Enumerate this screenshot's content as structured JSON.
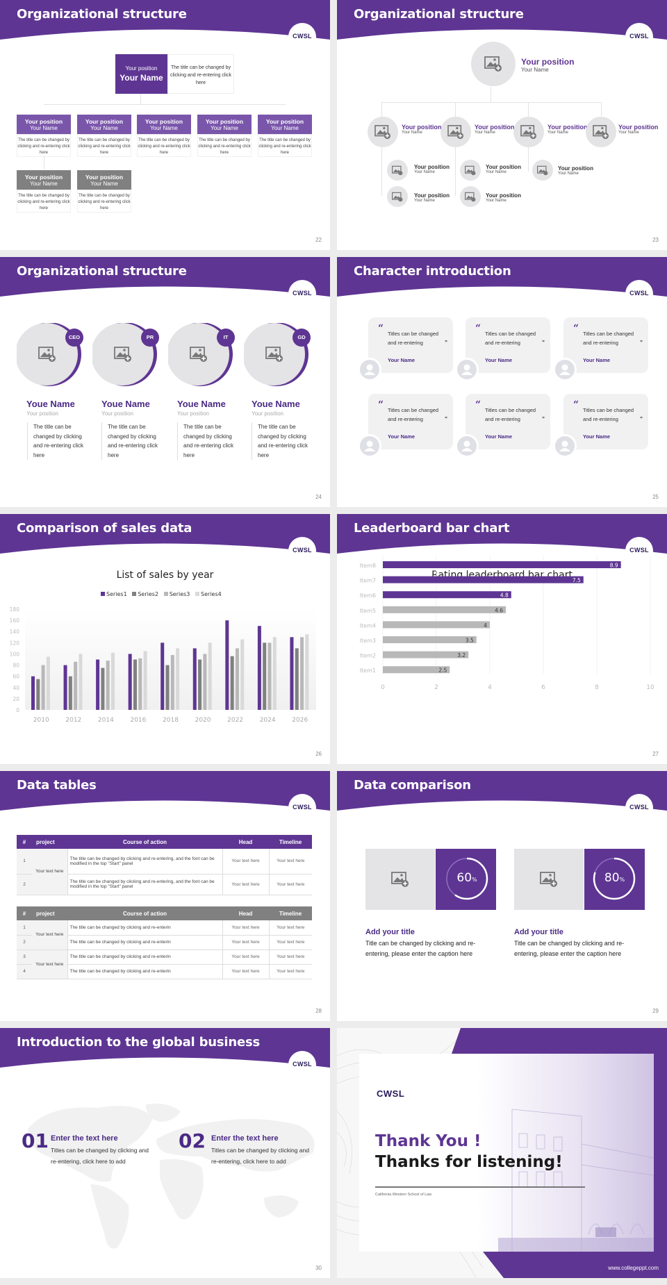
{
  "colors": {
    "accent": "#5e3593",
    "dark_accent": "#4a2a85",
    "gray_header": "#808080",
    "bar_gray": "#b8b8b8",
    "background": "#ececec"
  },
  "brand": "CWSL",
  "slides": [
    {
      "page": "22",
      "title": "Organizational structure",
      "top": {
        "position": "Your position",
        "name": "Your Name",
        "desc": "The title can be changed by clicking and re-entering click here"
      },
      "boxes": [
        {
          "position": "Your position",
          "name": "Your Name",
          "desc": "The title can be changed by clicking and re-entering click here",
          "style": "purple"
        },
        {
          "position": "Your position",
          "name": "Your Name",
          "desc": "The title can be changed by clicking and re-entering click here",
          "style": "purple"
        },
        {
          "position": "Your position",
          "name": "Your Name",
          "desc": "The title can be changed by clicking and re-entering click here",
          "style": "purple"
        },
        {
          "position": "Your position",
          "name": "Your Name",
          "desc": "The title can be changed by clicking and re-entering click here",
          "style": "purple"
        },
        {
          "position": "Your position",
          "name": "Your Name",
          "desc": "The title can be changed by clicking and re-entering click here",
          "style": "purple"
        },
        {
          "position": "Your position",
          "name": "Your Name",
          "desc": "The title can be changed by clicking and re-entering click here",
          "style": "gray"
        },
        {
          "position": "Your position",
          "name": "Your Name",
          "desc": "The title can be changed by clicking and re-entering click here",
          "style": "gray"
        }
      ]
    },
    {
      "page": "23",
      "title": "Organizational structure",
      "top": {
        "position": "Your position",
        "name": "Your Name"
      },
      "level1": [
        {
          "position": "Your position",
          "name": "Your Name"
        },
        {
          "position": "Your position",
          "name": "Your Name"
        },
        {
          "position": "Your position",
          "name": "Your Name"
        },
        {
          "position": "Your position",
          "name": "Your Name"
        }
      ],
      "level2": [
        {
          "position": "Your position",
          "name": "Your Name"
        },
        {
          "position": "Your position",
          "name": "Your Name"
        },
        {
          "position": "Your position",
          "name": "Your Name"
        },
        {
          "position": "Your position",
          "name": "Your Name"
        },
        {
          "position": "Your position",
          "name": "Your Name"
        }
      ]
    },
    {
      "page": "24",
      "title": "Organizational structure",
      "people": [
        {
          "tag": "CEO",
          "name": "Youe Name",
          "position": "Your position",
          "desc": "The title can be changed by clicking and re-entering click here"
        },
        {
          "tag": "PR",
          "name": "Youe Name",
          "position": "Your position",
          "desc": "The title can be changed by clicking and re-entering click here"
        },
        {
          "tag": "IT",
          "name": "Youe Name",
          "position": "Your position",
          "desc": "The title can be changed by clicking and re-entering click here"
        },
        {
          "tag": "GD",
          "name": "Youe Name",
          "position": "Your position",
          "desc": "The title can be changed by clicking and re-entering click here"
        }
      ]
    },
    {
      "page": "25",
      "title": "Character introduction",
      "quotes": [
        {
          "text": "Titles can be changed and re-entering",
          "name": "Your Name"
        },
        {
          "text": "Titles can be changed and re-entering",
          "name": "Your Name"
        },
        {
          "text": "Titles can be changed and re-entering",
          "name": "Your Name"
        },
        {
          "text": "Titles can be changed and re-entering",
          "name": "Your Name"
        },
        {
          "text": "Titles can be changed and re-entering",
          "name": "Your Name"
        },
        {
          "text": "Titles can be changed and re-entering",
          "name": "Your Name"
        }
      ],
      "open_quote": "“",
      "close_quote": "”"
    },
    {
      "page": "26",
      "title": "Comparison of sales data"
    },
    {
      "page": "27",
      "title": "Leaderboard bar chart"
    },
    {
      "page": "28",
      "title": "Data tables",
      "table1": {
        "headers": [
          "#",
          "project",
          "Course of action",
          "Head",
          "Timeline"
        ],
        "project": "Your text here",
        "rows": [
          {
            "num": "1",
            "desc": "The title can be changed by clicking and re-entering, and the font can be modified in the top \"Start\" panel",
            "head": "Your text here",
            "timeline": "Your text here"
          },
          {
            "num": "2",
            "desc": "The title can be changed by clicking and re-entering, and the font can be modified in the top \"Start\" panel",
            "head": "Your text here",
            "timeline": "Your text here"
          }
        ]
      },
      "table2": {
        "headers": [
          "#",
          "project",
          "Course of action",
          "Head",
          "Timeline"
        ],
        "projects": [
          "Your text here",
          "Your text here"
        ],
        "rows": [
          {
            "num": "1",
            "desc": "The title can be changed by clicking and re-enterin",
            "head": "Your text here",
            "timeline": "Your text here"
          },
          {
            "num": "2",
            "desc": "The title can be changed by clicking and re-enterin",
            "head": "Your text here",
            "timeline": "Your text here"
          },
          {
            "num": "3",
            "desc": "The title can be changed by clicking and re-enterin",
            "head": "Your text here",
            "timeline": "Your text here"
          },
          {
            "num": "4",
            "desc": "The title can be changed by clicking and re-enterin",
            "head": "Your text here",
            "timeline": "Your text here"
          }
        ]
      }
    },
    {
      "page": "29",
      "title": "Data comparison",
      "items": [
        {
          "value": "60",
          "unit": "%",
          "percent": 60,
          "title": "Add your title",
          "text": "Title can be changed by clicking and re-entering, please enter the caption here"
        },
        {
          "value": "80",
          "unit": "%",
          "percent": 80,
          "title": "Add your title",
          "text": "Title can be changed by clicking and re-entering, please enter the caption here"
        }
      ]
    },
    {
      "page": "30",
      "title": "Introduction to the global business",
      "items": [
        {
          "num": "01",
          "title": "Enter the text here",
          "text": "Titles can be changed by clicking and re-entering, click here to add"
        },
        {
          "num": "02",
          "title": "Enter the text here",
          "text": "Titles can be changed by clicking and re-entering, click here to add"
        }
      ]
    },
    {
      "brand": "CWSL",
      "thank_you": "Thank You !",
      "thanks_listening": "Thanks for listening!",
      "school": "California Western School of Law",
      "website": "www.collegeppt.com"
    }
  ],
  "chart_data": [
    {
      "type": "bar",
      "title": "List of sales by year",
      "categories": [
        "2010",
        "2012",
        "2014",
        "2016",
        "2018",
        "2020",
        "2022",
        "2024",
        "2026"
      ],
      "series": [
        {
          "name": "Series1",
          "color": "#5e3593",
          "values": [
            60,
            80,
            90,
            100,
            120,
            110,
            160,
            150,
            130
          ]
        },
        {
          "name": "Series2",
          "color": "#808080",
          "values": [
            55,
            60,
            75,
            90,
            80,
            90,
            96,
            120,
            110
          ]
        },
        {
          "name": "Series3",
          "color": "#b8b8b8",
          "values": [
            80,
            86,
            88,
            92,
            98,
            100,
            110,
            120,
            130
          ]
        },
        {
          "name": "Series4",
          "color": "#d9d9d9",
          "values": [
            95,
            100,
            102,
            105,
            110,
            120,
            126,
            130,
            135
          ]
        }
      ],
      "yticks": [
        "0",
        "20",
        "40",
        "60",
        "80",
        "100",
        "120",
        "140",
        "160",
        "180"
      ],
      "ylim": [
        0,
        180
      ],
      "legend_position": "top",
      "grid": false,
      "xlabel": "",
      "ylabel": ""
    },
    {
      "type": "bar",
      "orientation": "horizontal",
      "title": "Rating leaderboard bar chart",
      "categories": [
        "Item8",
        "Item7",
        "Item6",
        "Item5",
        "Item4",
        "Item3",
        "Item2",
        "Item1"
      ],
      "values": [
        8.9,
        7.5,
        4.8,
        4.6,
        4,
        3.5,
        3.2,
        2.5
      ],
      "labels": [
        "8.9",
        "7.5",
        "4.8",
        "4.6",
        "4",
        "3.5",
        "3.2",
        "2.5"
      ],
      "highlighted": [
        true,
        true,
        true,
        false,
        false,
        false,
        false,
        false
      ],
      "xticks": [
        "0",
        "2",
        "4",
        "6",
        "8",
        "10"
      ],
      "xlim": [
        0,
        10
      ],
      "grid": true,
      "xlabel": "",
      "ylabel": ""
    }
  ]
}
